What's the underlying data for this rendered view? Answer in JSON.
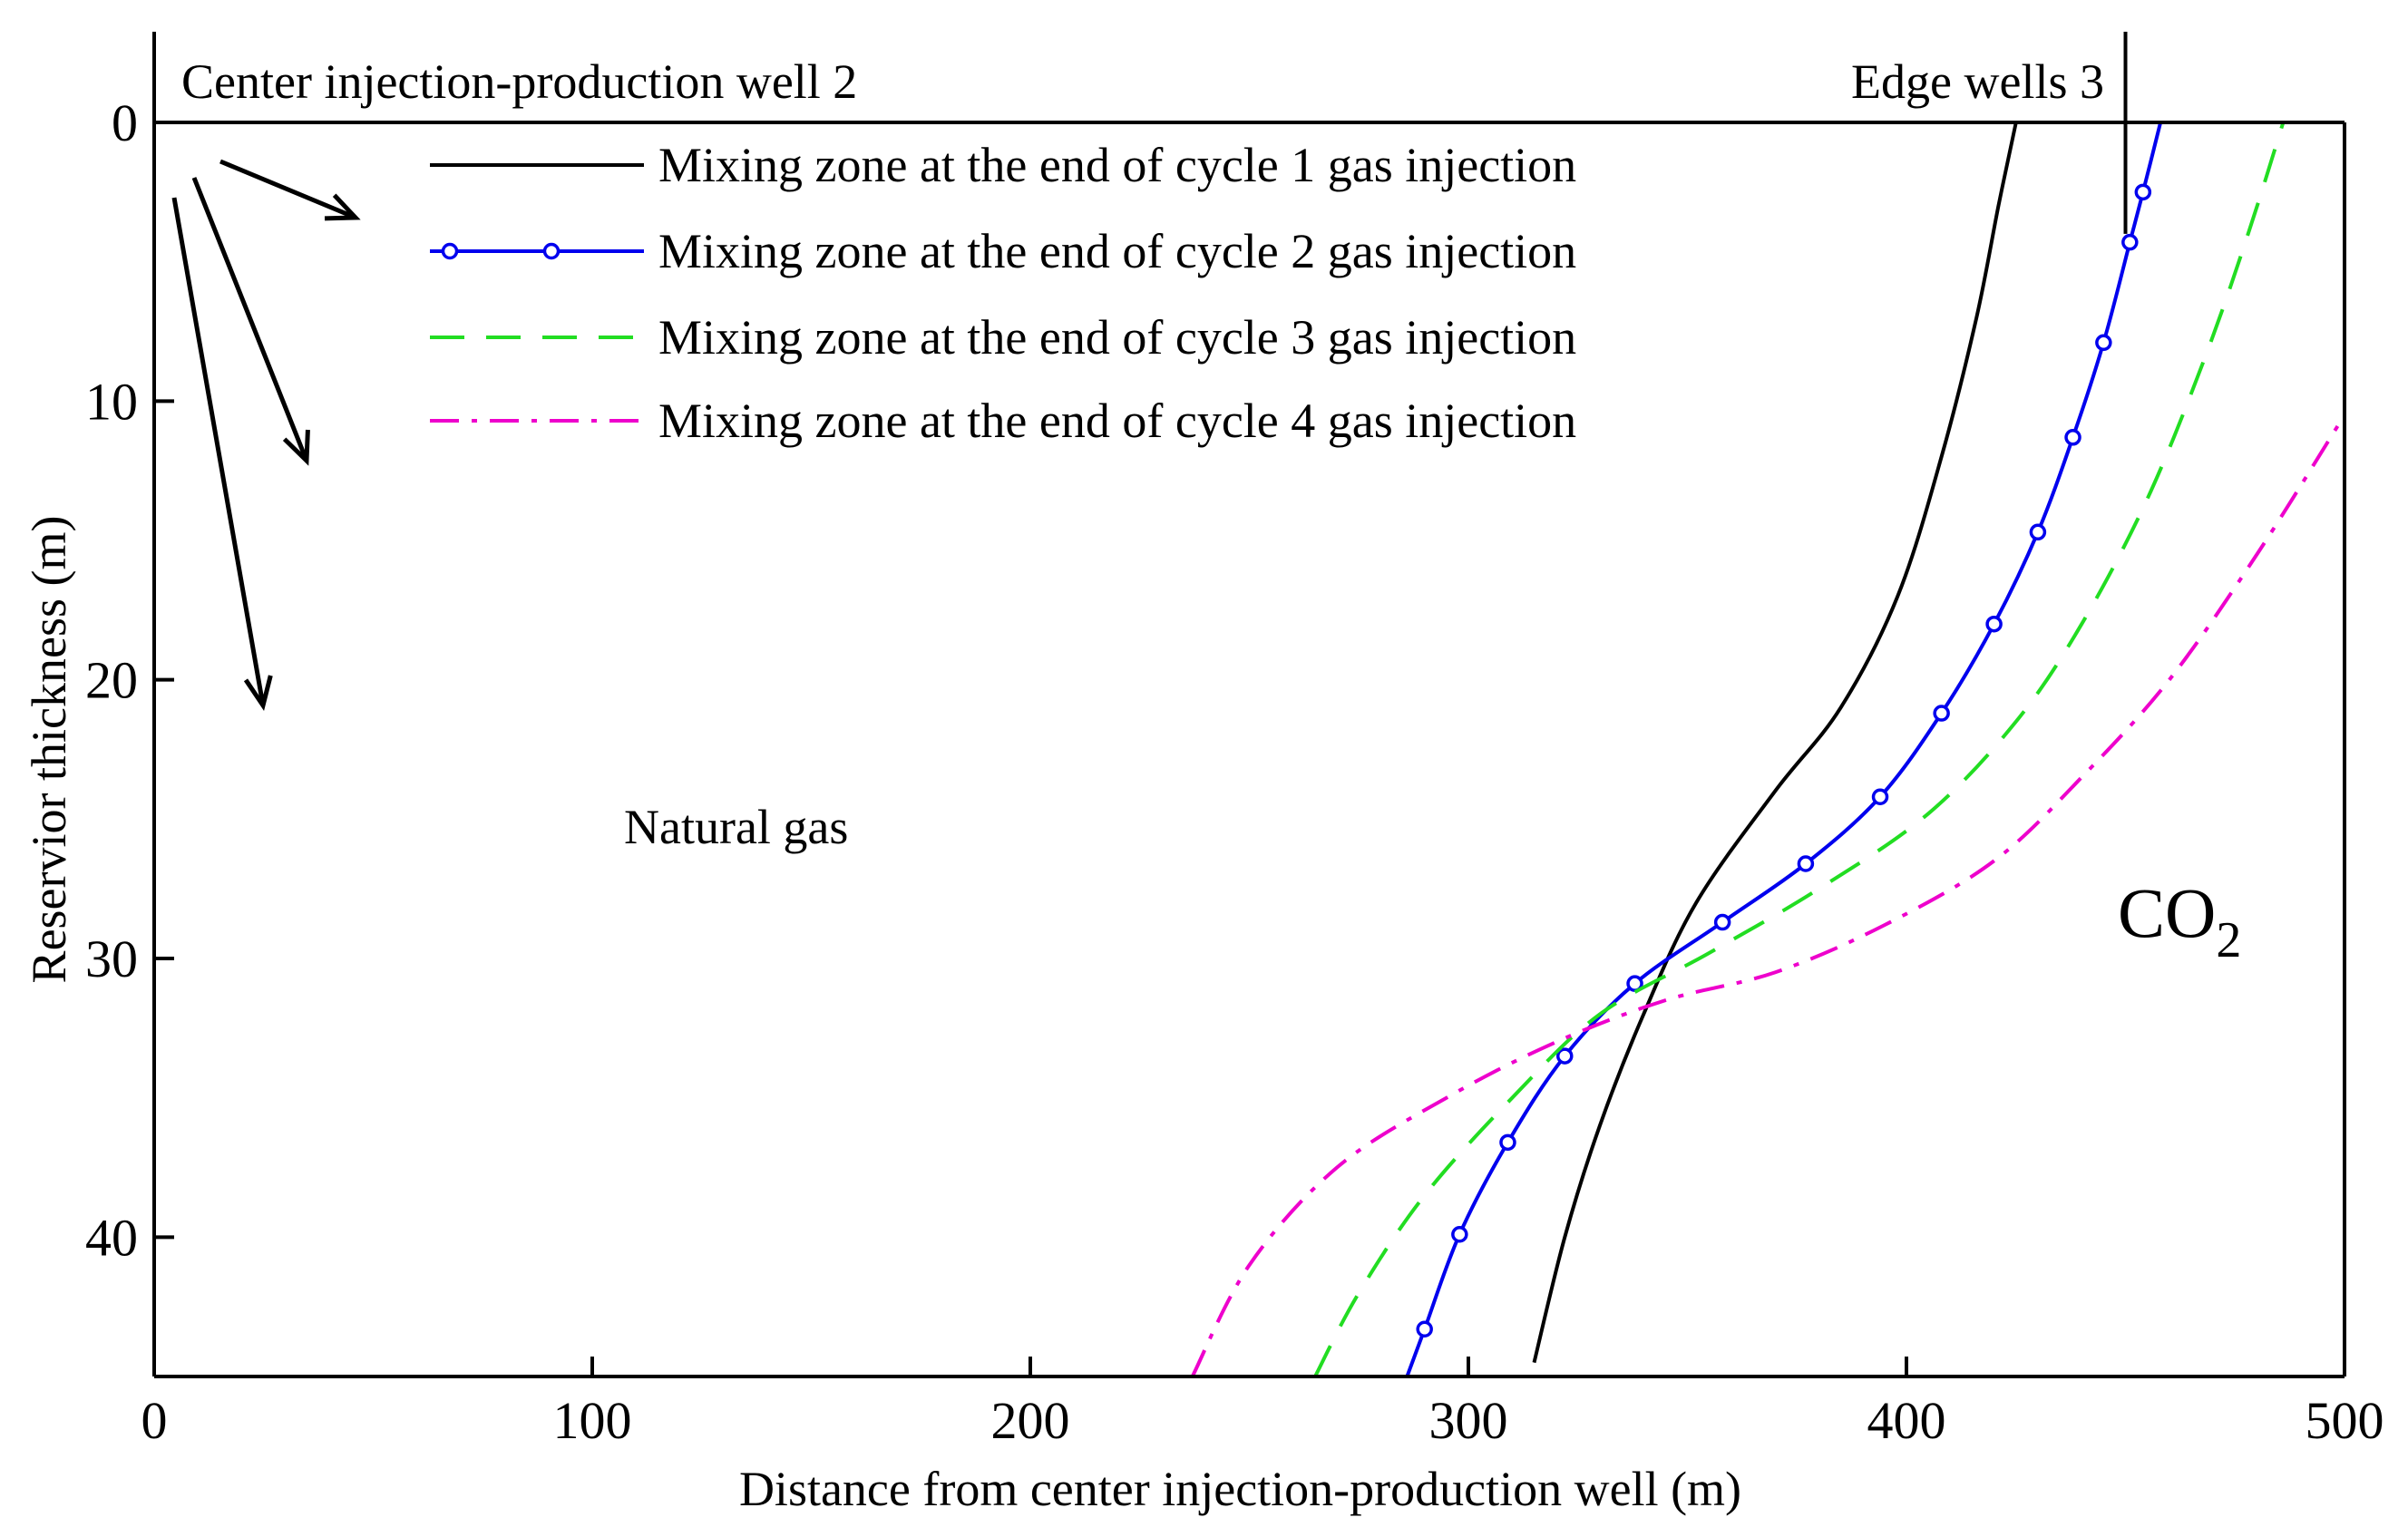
{
  "chart_data": {
    "type": "line",
    "title": "",
    "xlabel": "Distance from center injection-production well (m)",
    "ylabel": "Reservior thickness (m)",
    "xlim": [
      0,
      500
    ],
    "ylim": [
      45,
      0
    ],
    "y_inverted": true,
    "grid": false,
    "legend_position": "top-center",
    "x_ticks": [
      "0",
      "100",
      "200",
      "300",
      "400",
      "500"
    ],
    "y_ticks": [
      "0",
      "10",
      "20",
      "30",
      "40"
    ],
    "series": [
      {
        "name": "Mixing zone at the end of cycle 1 gas injection",
        "color": "#000000",
        "style": "solid",
        "marker": "none",
        "x": [
          315,
          322,
          330,
          340,
          352,
          370,
          385,
          398,
          408,
          416,
          421,
          425
        ],
        "y": [
          44.5,
          40,
          36,
          32,
          28,
          24,
          21,
          17,
          12,
          7,
          3,
          0
        ]
      },
      {
        "name": "Mixing zone at the end of cycle 2 gas injection",
        "color": "#0000ee",
        "style": "solid",
        "marker": "circle",
        "x": [
          286,
          290,
          298,
          309,
          322,
          338,
          358,
          377,
          394,
          408,
          420,
          430,
          438,
          445,
          451,
          454,
          458
        ],
        "y": [
          45,
          43.3,
          39.9,
          36.6,
          33.5,
          30.9,
          28.7,
          26.6,
          24.2,
          21.2,
          18,
          14.7,
          11.3,
          7.9,
          4.3,
          2.5,
          0
        ]
      },
      {
        "name": "Mixing zone at the end of cycle 3 gas injection",
        "color": "#22dd22",
        "style": "dashed",
        "marker": "none",
        "x": [
          265,
          275,
          290,
          310,
          330,
          355,
          380,
          405,
          425,
          440,
          455,
          468,
          478,
          486
        ],
        "y": [
          45,
          42,
          38.5,
          35,
          32,
          29.8,
          27.5,
          24.8,
          21.5,
          18,
          13.5,
          8.5,
          4,
          0
        ]
      },
      {
        "name": "Mixing zone at the end of cycle 4 gas injection",
        "color": "#ee00cc",
        "style": "dashdot",
        "marker": "none",
        "x": [
          237,
          250,
          270,
          295,
          320,
          345,
          370,
          395,
          420,
          440,
          460,
          480,
          500
        ],
        "y": [
          45,
          41,
          37.5,
          35,
          33,
          31.5,
          30.5,
          28.8,
          26.5,
          23.5,
          20,
          15.5,
          10.5
        ]
      }
    ],
    "annotations": [
      "Center injection-production well 2",
      "Edge wells 3",
      "Natural gas",
      "CO2"
    ]
  }
}
